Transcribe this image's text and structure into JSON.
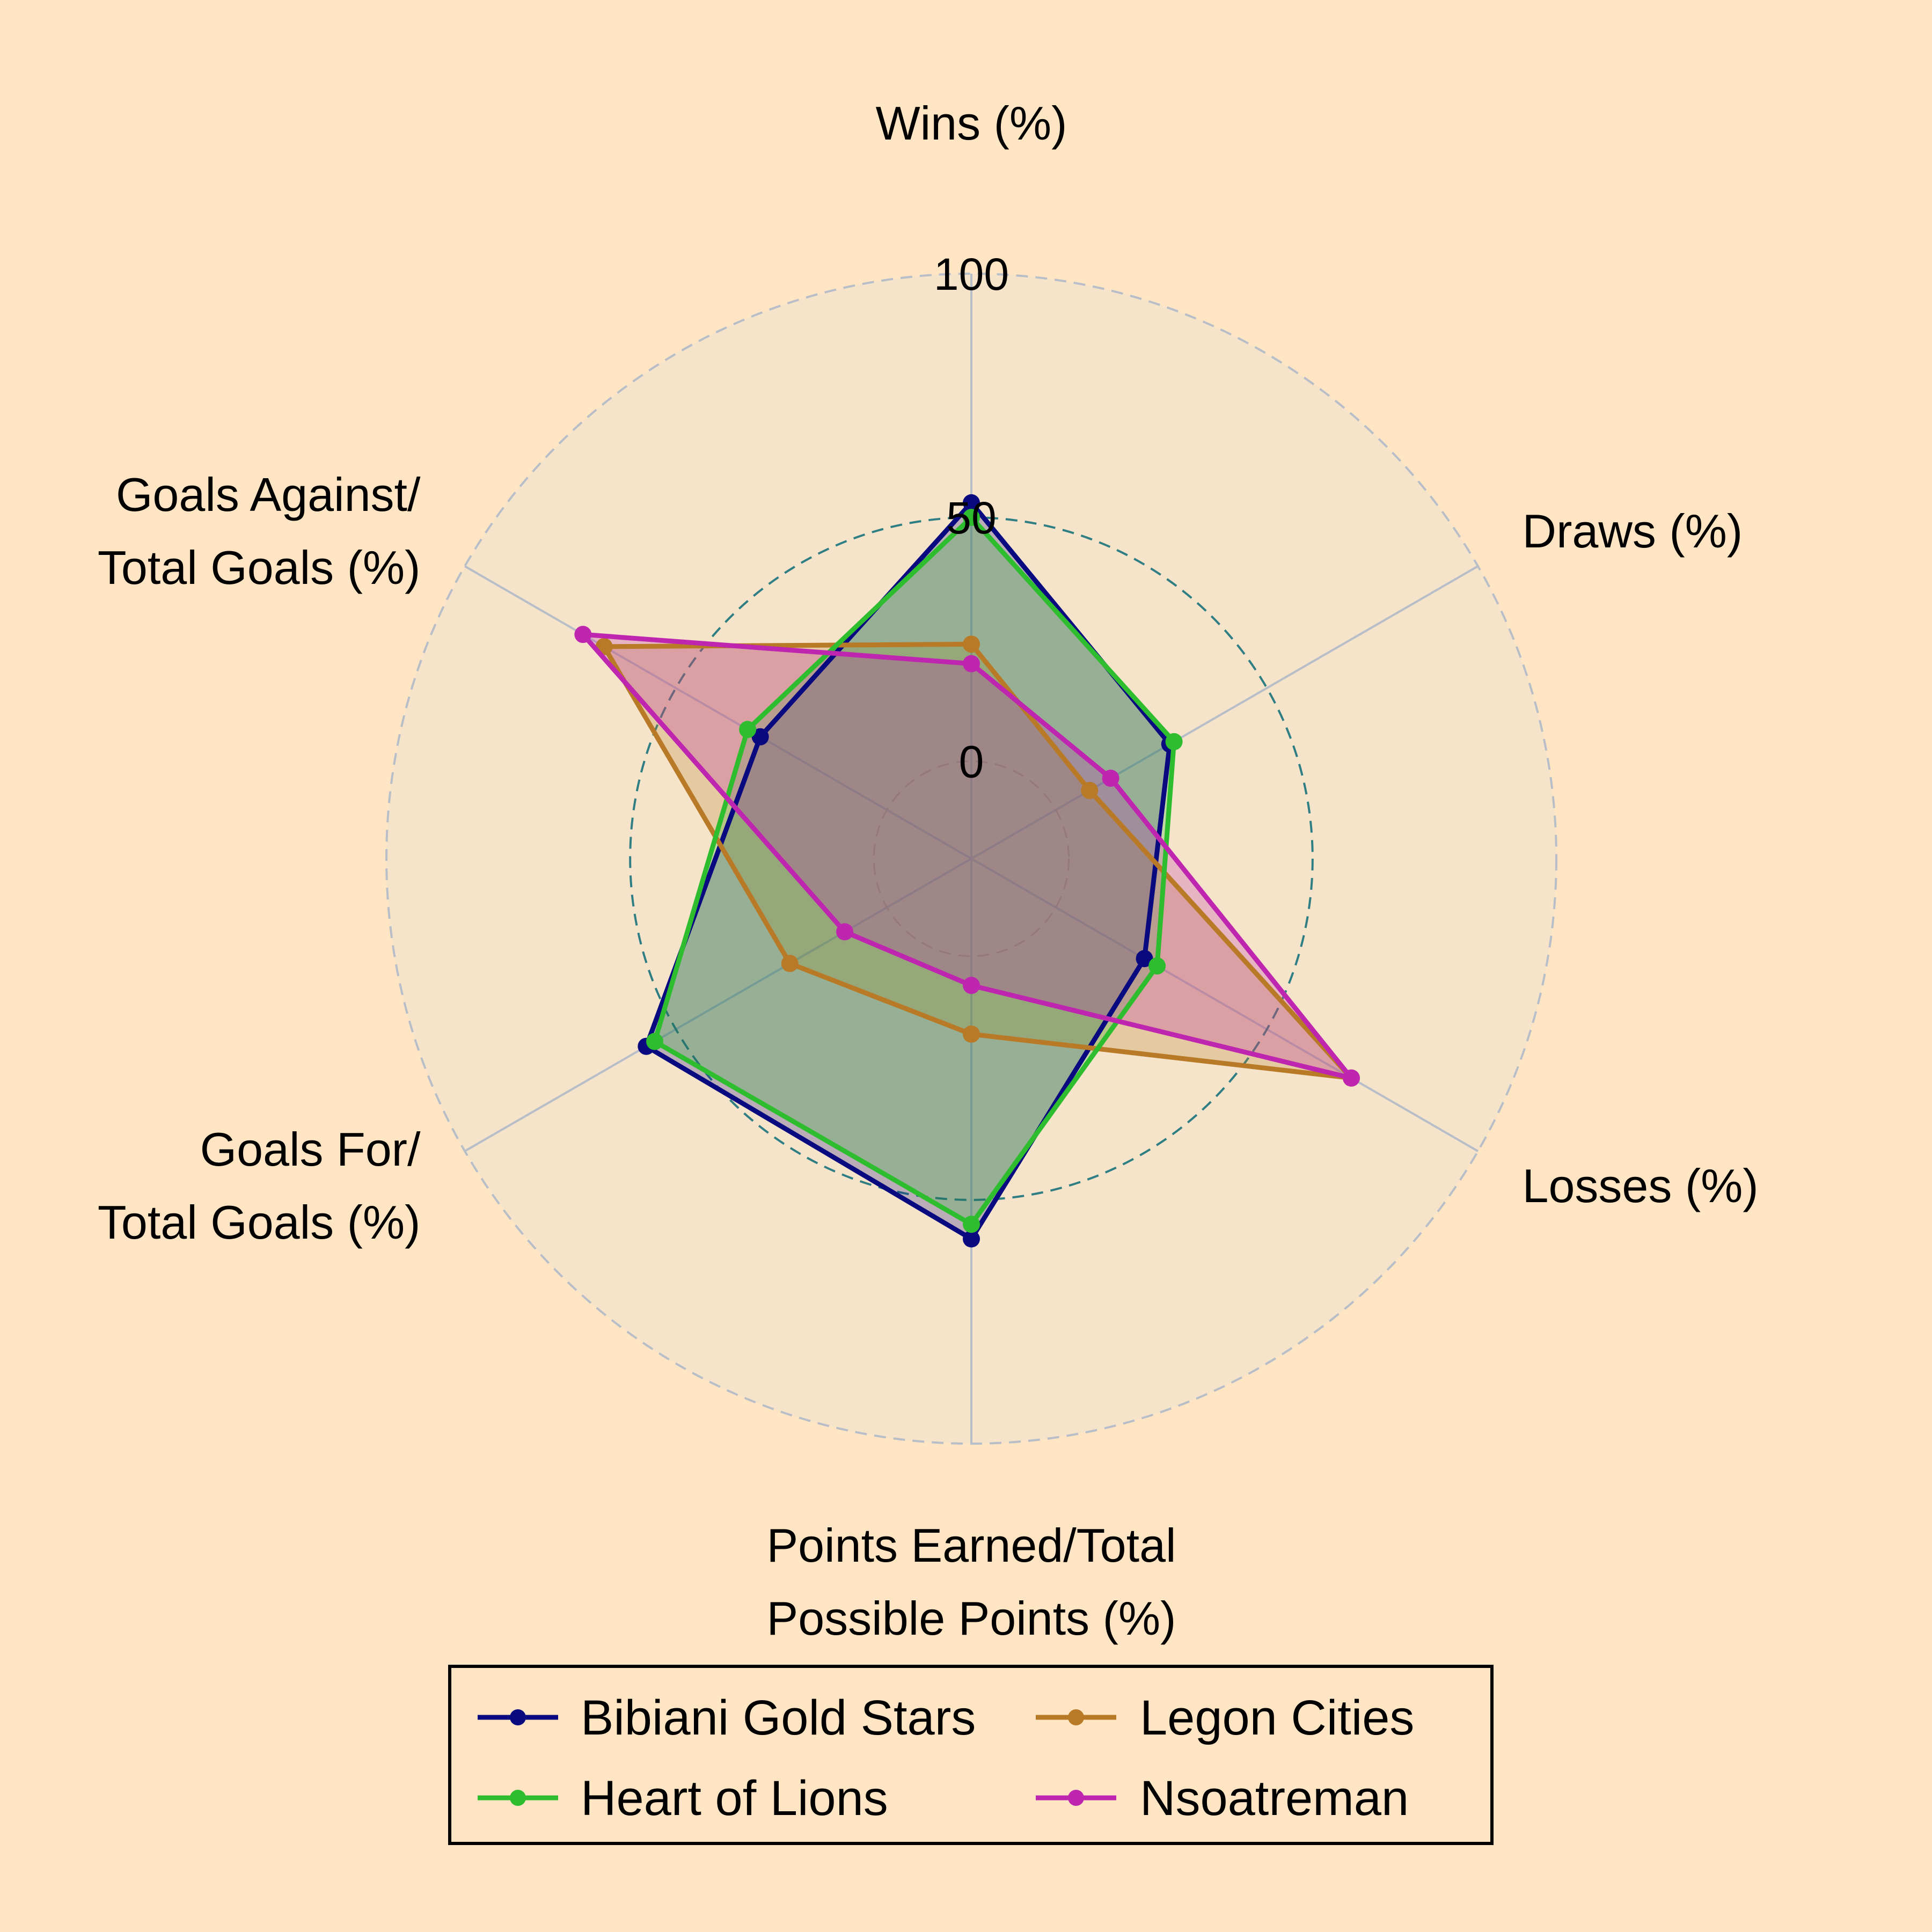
{
  "chart_data": {
    "type": "radar",
    "title": "",
    "radial_range": [
      -20,
      100
    ],
    "radial_ticks": [
      0,
      50,
      100
    ],
    "legend_position": "bottom",
    "axes": [
      [
        "Wins (%)"
      ],
      [
        "Draws (%)"
      ],
      [
        "Losses (%)"
      ],
      [
        "Points Earned/Total",
        "Possible Points (%)"
      ],
      [
        "Goals For/",
        "Total Goals (%)"
      ],
      [
        "Goals Against/",
        "Total Goals (%)"
      ]
    ],
    "series": [
      {
        "name": "Bibiani Gold Stars",
        "color": "#0A0A80",
        "values": [
          53,
          27,
          21,
          58,
          57,
          30
        ]
      },
      {
        "name": "Legon Cities",
        "color": "#B87A26",
        "values": [
          24,
          8,
          70,
          16,
          23,
          67
        ]
      },
      {
        "name": "Heart of Lions",
        "color": "#2EBD2E",
        "values": [
          50,
          28,
          24,
          55,
          55,
          33
        ]
      },
      {
        "name": "Nsoatreman",
        "color": "#BF26B0",
        "values": [
          20,
          13,
          70,
          6,
          10,
          72
        ]
      }
    ]
  }
}
